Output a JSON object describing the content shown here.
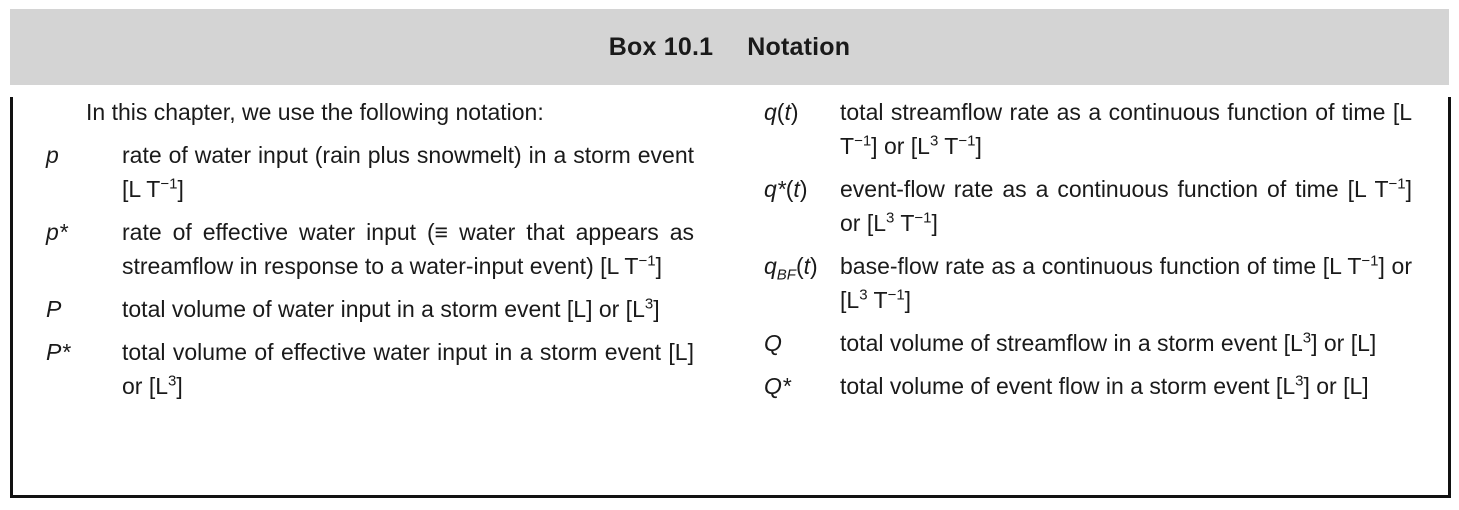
{
  "header": {
    "label": "Box 10.1",
    "title": "Notation"
  },
  "intro": "In this chapter, we use the following notation:",
  "left_entries": [
    {
      "sym": "p",
      "desc_parts": [
        "rate of water input (rain plus snowmelt) in a storm event [L T",
        "−1",
        "]"
      ]
    },
    {
      "sym": "p*",
      "desc_parts": [
        "rate of effective water input (≡ water that appears as streamflow in response to a water-input event) [L T",
        "−1",
        "]"
      ]
    },
    {
      "sym": "P",
      "desc_parts": [
        "total volume of water input in a storm event [L] or [L",
        "3",
        "]"
      ]
    },
    {
      "sym": "P*",
      "desc_parts": [
        "total volume of effective water input in a storm event [L] or [L",
        "3",
        "]"
      ]
    }
  ],
  "right_entries": [
    {
      "sym": "q",
      "arg": "t",
      "desc": [
        "total streamflow rate as a continuous function of time [L T",
        "−1",
        "] or [L",
        "3",
        " T",
        "−1",
        "]"
      ]
    },
    {
      "sym": "q*",
      "arg": "t",
      "desc": [
        "event-flow rate as a continuous function of time [L T",
        "−1",
        "] or [L",
        "3",
        " T",
        "−1",
        "]"
      ]
    },
    {
      "sym": "q",
      "sub": "BF",
      "arg": "t",
      "desc": [
        "base-flow rate as a continuous function of time [L T",
        "−1",
        "] or [L",
        "3",
        " T",
        "−1",
        "]"
      ]
    },
    {
      "sym": "Q",
      "desc": [
        "total volume of streamflow in a storm event [L",
        "3",
        "] or [L]"
      ]
    },
    {
      "sym": "Q*",
      "desc": [
        "total volume of event flow in a storm event [L",
        "3",
        "] or [L]"
      ]
    }
  ]
}
